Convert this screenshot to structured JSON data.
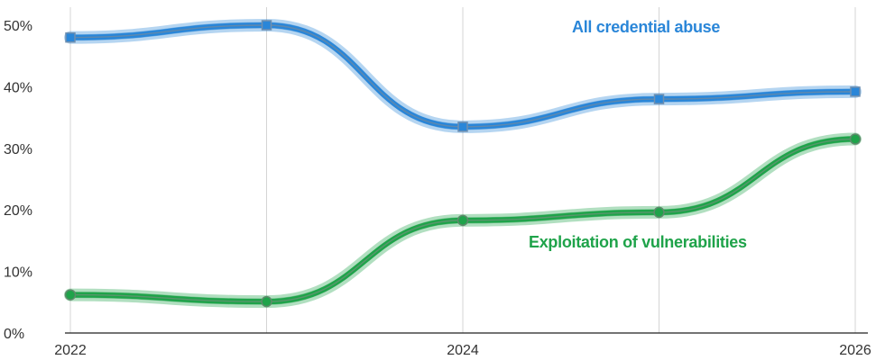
{
  "chart_data": {
    "type": "line",
    "title": "",
    "xlabel": "",
    "ylabel": "",
    "x": [
      2022,
      2023,
      2024,
      2025,
      2026
    ],
    "xlim": [
      2022,
      2026
    ],
    "ylim": [
      0,
      50
    ],
    "x_tick_labels": [
      "2022",
      "2024",
      "2026"
    ],
    "y_tick_labels": [
      "0%",
      "10%",
      "20%",
      "30%",
      "40%",
      "50%"
    ],
    "grid": "vertical",
    "series": [
      {
        "name": "All credential abuse",
        "values": [
          48,
          50,
          33.5,
          38,
          39.2
        ],
        "color": "#2a86d8",
        "marker": "square"
      },
      {
        "name": "Exploitation of vulnerabilities",
        "values": [
          6.2,
          5.1,
          18.3,
          19.6,
          31.5
        ],
        "color": "#1fa34a",
        "marker": "circle"
      }
    ]
  }
}
